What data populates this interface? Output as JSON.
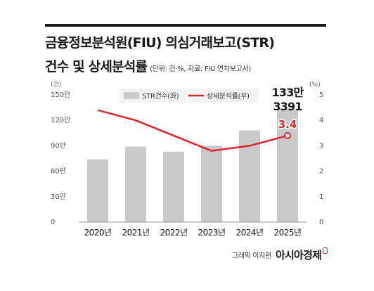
{
  "header": {
    "title_line1": "금융정보분석원(FIU) 의심거래보고(STR)",
    "title_line2": "건수 및 상세분석률",
    "unit_note": "(단위: 건·%, 자료: FIU 연차보고서)"
  },
  "footer": {
    "credit": "그래픽 이지현",
    "logo": "아시아경제"
  },
  "colors": {
    "bar": "#c9c9c9",
    "line": "#d7262e",
    "axis": "#999999"
  },
  "chart_data": {
    "type": "bar",
    "categories": [
      "2020년",
      "2021년",
      "2022년",
      "2023년",
      "2024년",
      "2025년"
    ],
    "left_axis": {
      "unit_label": "(건)",
      "ticks": [
        0,
        30,
        60,
        90,
        120,
        150
      ],
      "tick_labels": [
        "0",
        "30만",
        "60만",
        "90만",
        "120만",
        "150만"
      ],
      "range": [
        0,
        150
      ]
    },
    "right_axis": {
      "unit_label": "(%)",
      "ticks": [
        0,
        1,
        2,
        3,
        4,
        5
      ],
      "tick_labels": [
        "0",
        "1",
        "2",
        "3",
        "4",
        "5"
      ],
      "range": [
        0,
        5
      ]
    },
    "series": [
      {
        "name": "STR건수(좌)",
        "type": "bar",
        "axis": "left",
        "unit": "만 건",
        "values": [
          74,
          89,
          83,
          90,
          108,
          133.3391
        ]
      },
      {
        "name": "상세분석률(우)",
        "type": "line",
        "axis": "right",
        "unit": "%",
        "values": [
          4.4,
          4.0,
          3.4,
          2.8,
          3.0,
          3.4
        ]
      }
    ],
    "annotations": {
      "last_bar_line1": "133만",
      "last_bar_line2": "3391",
      "last_point": "3.4"
    },
    "legend": "top-left",
    "grid": false
  }
}
